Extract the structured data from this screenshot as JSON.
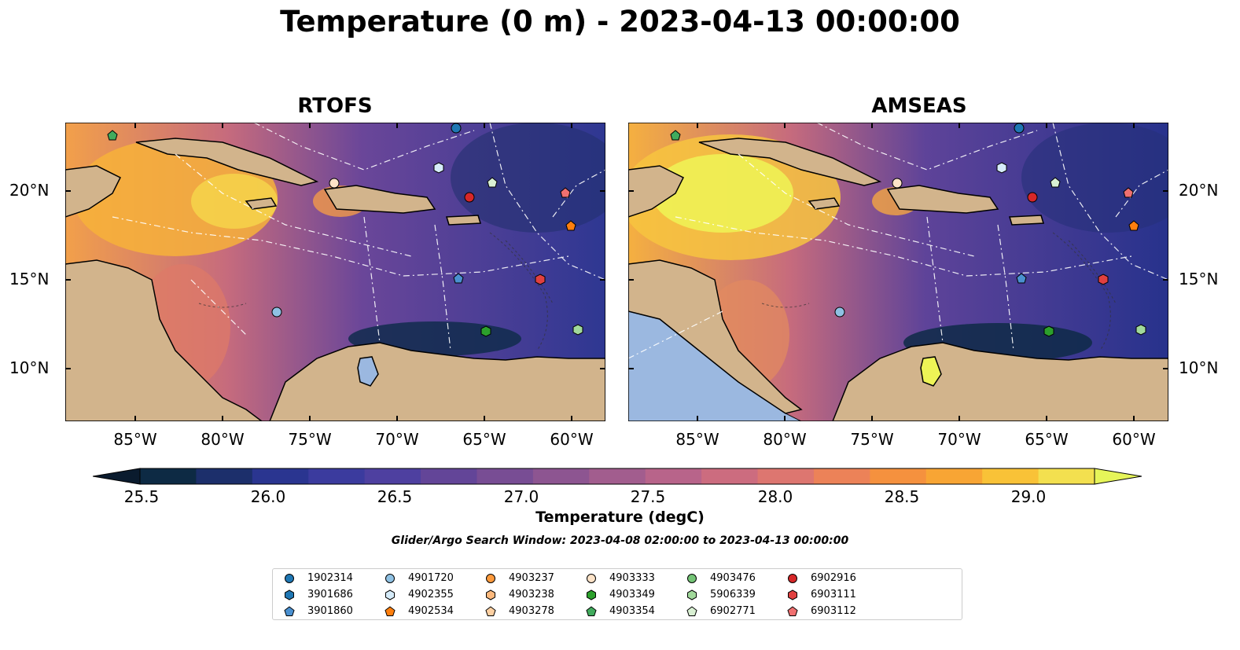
{
  "title": "Temperature (0 m) - 2023-04-13 00:00:00",
  "panels": [
    {
      "title": "RTOFS"
    },
    {
      "title": "AMSEAS"
    }
  ],
  "lon_ticks": [
    "85°W",
    "80°W",
    "75°W",
    "70°W",
    "65°W",
    "60°W"
  ],
  "lat_ticks": [
    "20°N",
    "15°N",
    "10°N"
  ],
  "colorbar": {
    "label": "Temperature (degC)",
    "ticks": [
      "25.5",
      "26.0",
      "26.5",
      "27.0",
      "27.5",
      "28.0",
      "28.5",
      "29.0"
    ],
    "colors": [
      "#0d2a44",
      "#1c2f6b",
      "#2a3590",
      "#3b3b9e",
      "#4e40a0",
      "#634598",
      "#784d94",
      "#8d5591",
      "#a25d8e",
      "#b8648a",
      "#cc6c7f",
      "#dd7670",
      "#ec8258",
      "#f5913e",
      "#f8a534",
      "#f9c237",
      "#f3e04f"
    ],
    "extend_low": "#0a1b2e",
    "extend_high": "#e6f559"
  },
  "search_window": "Glider/Argo Search Window: 2023-04-08 02:00:00 to 2023-04-13 00:00:00",
  "legend": [
    {
      "label": "1902314",
      "marker": "circle",
      "color": "#1f77b4"
    },
    {
      "label": "3901686",
      "marker": "hexagon",
      "color": "#1f77b4"
    },
    {
      "label": "3901860",
      "marker": "pentagon",
      "color": "#4a90d0"
    },
    {
      "label": "4901720",
      "marker": "circle",
      "color": "#8fc1e3"
    },
    {
      "label": "4902355",
      "marker": "hexagon",
      "color": "#d6ecfa"
    },
    {
      "label": "4902534",
      "marker": "pentagon",
      "color": "#ff7f0e"
    },
    {
      "label": "4903237",
      "marker": "circle",
      "color": "#fd9a3c"
    },
    {
      "label": "4903238",
      "marker": "hexagon",
      "color": "#fdb97d"
    },
    {
      "label": "4903278",
      "marker": "pentagon",
      "color": "#fdd0a2"
    },
    {
      "label": "4903333",
      "marker": "circle",
      "color": "#fde3c8"
    },
    {
      "label": "4903349",
      "marker": "hexagon",
      "color": "#2ca02c"
    },
    {
      "label": "4903354",
      "marker": "pentagon",
      "color": "#41ab5d"
    },
    {
      "label": "4903476",
      "marker": "circle",
      "color": "#74c476"
    },
    {
      "label": "5906339",
      "marker": "hexagon",
      "color": "#a1d99b"
    },
    {
      "label": "6902771",
      "marker": "pentagon",
      "color": "#d9f0d3"
    },
    {
      "label": "6902916",
      "marker": "circle",
      "color": "#d62728"
    },
    {
      "label": "6903111",
      "marker": "hexagon",
      "color": "#e04040"
    },
    {
      "label": "6903112",
      "marker": "pentagon",
      "color": "#f07070"
    }
  ],
  "land_color": "#d2b48c",
  "ocean_outside_color": "#9bb8e0"
}
